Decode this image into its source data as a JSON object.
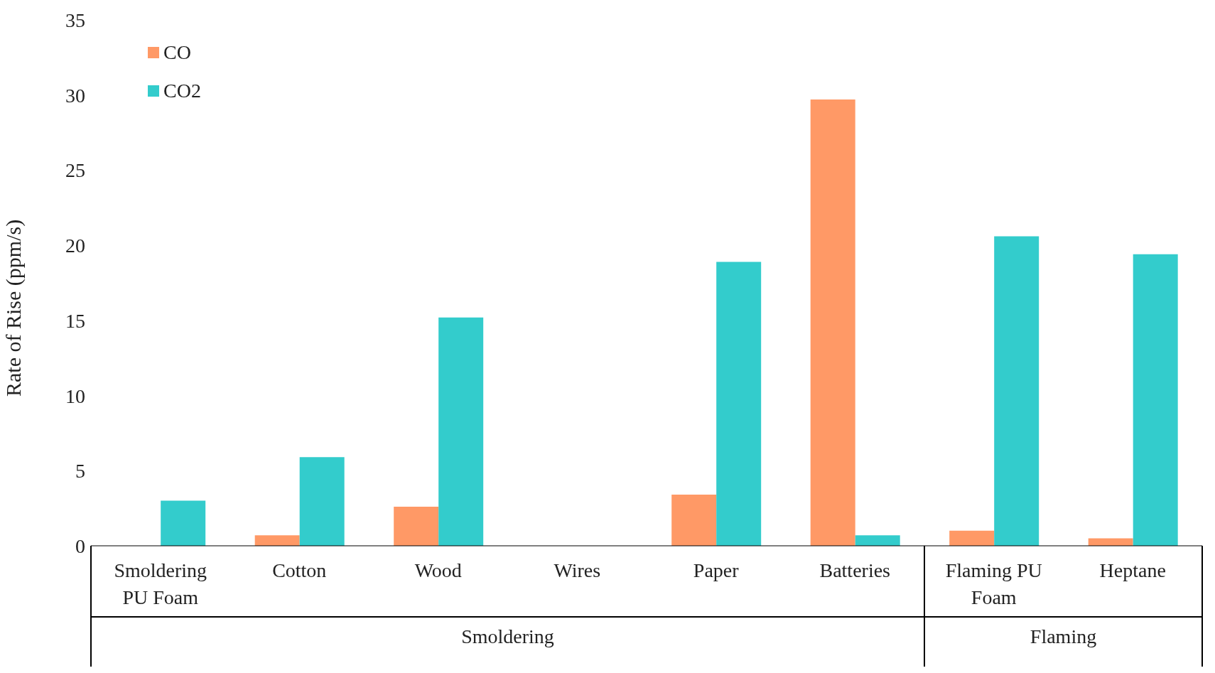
{
  "chart_data": {
    "type": "bar",
    "ylabel": "Rate of Rise (ppm/s)",
    "categories": [
      "Smoldering PU Foam",
      "Cotton",
      "Wood",
      "Wires",
      "Paper",
      "Batteries",
      "Flaming PU Foam",
      "Heptane"
    ],
    "series": [
      {
        "name": "CO",
        "color": "#ff9966",
        "values": [
          0,
          0.7,
          2.6,
          0,
          3.4,
          29.7,
          1.0,
          0.5
        ]
      },
      {
        "name": "CO2",
        "color": "#33cccc",
        "values": [
          3.0,
          5.9,
          15.2,
          0,
          18.9,
          0.7,
          20.6,
          19.4
        ]
      }
    ],
    "ylim": [
      0,
      35
    ],
    "yticks": [
      0,
      5,
      10,
      15,
      20,
      25,
      30,
      35
    ],
    "grid": false,
    "legend": "top left",
    "annotations": [
      "Smoldering",
      "Flaming"
    ]
  }
}
